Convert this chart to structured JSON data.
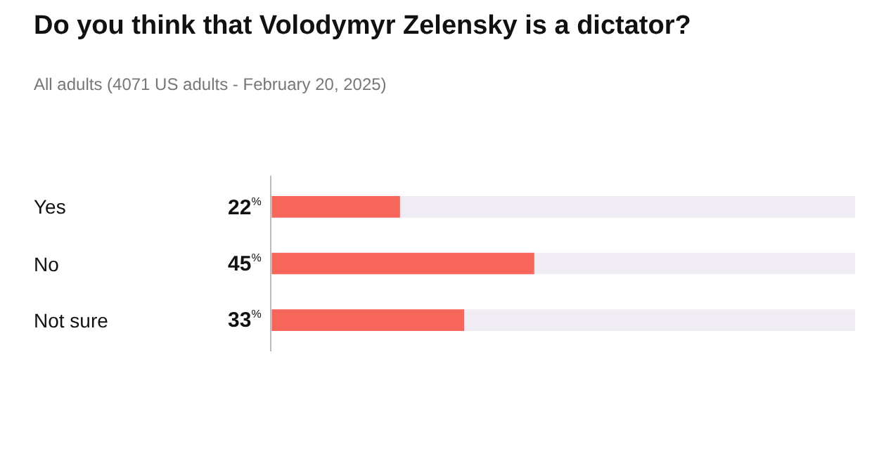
{
  "chart_data": {
    "type": "bar",
    "orientation": "horizontal",
    "title": "Do you think that Volodymyr Zelensky is a dictator?",
    "subtitle": "All adults (4071 US adults - February 20, 2025)",
    "categories": [
      "Yes",
      "No",
      "Not sure"
    ],
    "values": [
      22,
      45,
      33
    ],
    "color": "#f7665b",
    "value_labels": [
      "22$^{%}$",
      "45$^{%}$",
      "33$^{%}$"
    ],
    "xlim": [
      0,
      100
    ],
    "tick_labels": "y",
    "grid": false
  }
}
